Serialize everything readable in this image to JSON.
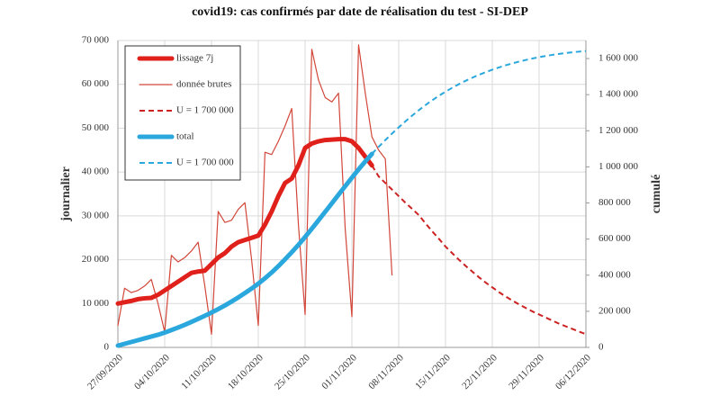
{
  "chart_data": {
    "type": "line",
    "title": "covid19: cas confirmés par date de réalisation du test - SI-DEP",
    "ylabel": "journalier",
    "ylabel_color": "#c0282a",
    "y2label": "cumulé",
    "y2label_color": "#2aa7dc",
    "categories": [
      "27/09/2020",
      null,
      null,
      null,
      null,
      null,
      null,
      "04/10/2020",
      null,
      null,
      null,
      null,
      null,
      null,
      "11/10/2020",
      null,
      null,
      null,
      null,
      null,
      null,
      "18/10/2020",
      null,
      null,
      null,
      null,
      null,
      null,
      "25/10/2020",
      null,
      null,
      null,
      null,
      null,
      null,
      "01/11/2020",
      null,
      null,
      null,
      null,
      null,
      null,
      "08/11/2020",
      null,
      null,
      null,
      null,
      null,
      null,
      "15/11/2020",
      null,
      null,
      null,
      null,
      null,
      null,
      "22/11/2020",
      null,
      null,
      null,
      null,
      null,
      null,
      "29/11/2020",
      null,
      null,
      null,
      null,
      null,
      null,
      "06/12/2020"
    ],
    "ylim": [
      0,
      70000
    ],
    "yticks": [
      0,
      {
        "value": 10000,
        "label": "10 000"
      },
      {
        "value": 20000,
        "label": "20 000"
      },
      {
        "value": 30000,
        "label": "30 000"
      },
      {
        "value": 40000,
        "label": "40 000"
      },
      {
        "value": 50000,
        "label": "50 000"
      },
      {
        "value": 60000,
        "label": "60 000"
      },
      {
        "value": 70000,
        "label": "70 000"
      }
    ],
    "y2lim": [
      0,
      1700000
    ],
    "y2ticks": [
      0,
      {
        "value": 200000,
        "label": "200 000"
      },
      {
        "value": 400000,
        "label": "400 000"
      },
      {
        "value": 600000,
        "label": "600 000"
      },
      {
        "value": 800000,
        "label": "800 000"
      },
      {
        "value": 1000000,
        "label": "1 000 000"
      },
      {
        "value": 1200000,
        "label": "1 200 000"
      },
      {
        "value": 1400000,
        "label": "1 400 000"
      },
      {
        "value": 1600000,
        "label": "1 600 000"
      }
    ],
    "grid": true,
    "legend": "upper left",
    "series": [
      {
        "name": "lissage 7j",
        "color": "#e0201a",
        "linewidth": 5,
        "linestyle": "solid",
        "values": [
          10000,
          10300,
          10600,
          11000,
          11200,
          11300,
          12000,
          13000,
          14000,
          15000,
          16000,
          17000,
          17300,
          17500,
          19000,
          20500,
          21500,
          23000,
          24000,
          24500,
          25000,
          25500,
          28000,
          31000,
          34500,
          37500,
          38500,
          41500,
          45500,
          46500,
          47000,
          47300,
          47400,
          47500,
          47500,
          47000,
          45500,
          43500,
          41500,
          null,
          null,
          null,
          null,
          null,
          null,
          null,
          null,
          null,
          null,
          null,
          null,
          null,
          null,
          null,
          null,
          null,
          null,
          null,
          null,
          null,
          null,
          null,
          null,
          null,
          null,
          null,
          null,
          null,
          null,
          null,
          null
        ]
      },
      {
        "name": "donnée brutes",
        "color": "#d2473a",
        "linewidth": 1.2,
        "linestyle": "solid",
        "values": [
          5000,
          13500,
          12500,
          13000,
          14000,
          15500,
          10000,
          3500,
          21000,
          19500,
          20500,
          22000,
          24000,
          14000,
          3000,
          31000,
          28500,
          29000,
          31500,
          33000,
          20000,
          5000,
          44500,
          44000,
          47000,
          50500,
          54500,
          28000,
          7500,
          68000,
          61000,
          57000,
          56000,
          58000,
          27000,
          7000,
          69000,
          58000,
          48000,
          45000,
          43000,
          16500,
          null,
          null,
          null,
          null,
          null,
          null,
          null,
          null,
          null,
          null,
          null,
          null,
          null,
          null,
          null,
          null,
          null,
          null,
          null,
          null,
          null,
          null,
          null,
          null,
          null,
          null,
          null,
          null,
          null
        ]
      },
      {
        "name": "U = 1 700 000",
        "color": "#cc2222",
        "linewidth": 2,
        "linestyle": "dashed",
        "values": [
          null,
          null,
          null,
          null,
          null,
          null,
          null,
          null,
          null,
          null,
          null,
          null,
          null,
          null,
          null,
          null,
          null,
          null,
          null,
          null,
          null,
          null,
          null,
          null,
          null,
          null,
          null,
          null,
          null,
          null,
          null,
          null,
          null,
          null,
          null,
          null,
          null,
          null,
          41500,
          39000,
          37500,
          36000,
          34500,
          33000,
          31600,
          30200,
          28300,
          26500,
          24800,
          23000,
          21500,
          20000,
          18600,
          17300,
          16000,
          14800,
          13700,
          12600,
          11600,
          10700,
          9800,
          9000,
          8200,
          7500,
          6800,
          6100,
          5400,
          4800,
          4200,
          3600,
          3000
        ]
      },
      {
        "name": "total",
        "color": "#2aa7dc",
        "linewidth": 5,
        "linestyle": "solid",
        "axis": "y2",
        "values": [
          10000,
          20000,
          30000,
          40000,
          50000,
          60000,
          70000,
          82000,
          96000,
          110000,
          125000,
          141000,
          158000,
          175000,
          193000,
          212000,
          232000,
          254000,
          277000,
          301000,
          326000,
          353000,
          383000,
          415000,
          450000,
          488000,
          527000,
          568000,
          612000,
          657000,
          704000,
          751000,
          798000,
          846000,
          893000,
          940000,
          986000,
          1030000,
          1072000,
          null,
          null,
          null,
          null,
          null,
          null,
          null,
          null,
          null,
          null,
          null,
          null,
          null,
          null,
          null,
          null,
          null,
          null,
          null,
          null,
          null,
          null,
          null,
          null,
          null,
          null,
          null,
          null,
          null,
          null,
          null,
          null
        ]
      },
      {
        "name": "U = 1 700 000",
        "color": "#2aa7dc",
        "linewidth": 2,
        "linestyle": "dashed",
        "axis": "y2",
        "values": [
          null,
          null,
          null,
          null,
          null,
          null,
          null,
          null,
          null,
          null,
          null,
          null,
          null,
          null,
          null,
          null,
          null,
          null,
          null,
          null,
          null,
          null,
          null,
          null,
          null,
          null,
          null,
          null,
          null,
          null,
          null,
          null,
          null,
          null,
          null,
          null,
          null,
          null,
          1072000,
          1111000,
          1148500,
          1184500,
          1219000,
          1252000,
          1283600,
          1313800,
          1342100,
          1368600,
          1393400,
          1416400,
          1437900,
          1457900,
          1476500,
          1493800,
          1509800,
          1524600,
          1538300,
          1550900,
          1562500,
          1573200,
          1583000,
          1592000,
          1600200,
          1607700,
          1614500,
          1620600,
          1626000,
          1630800,
          1635000,
          1638600,
          1641600
        ]
      }
    ]
  }
}
